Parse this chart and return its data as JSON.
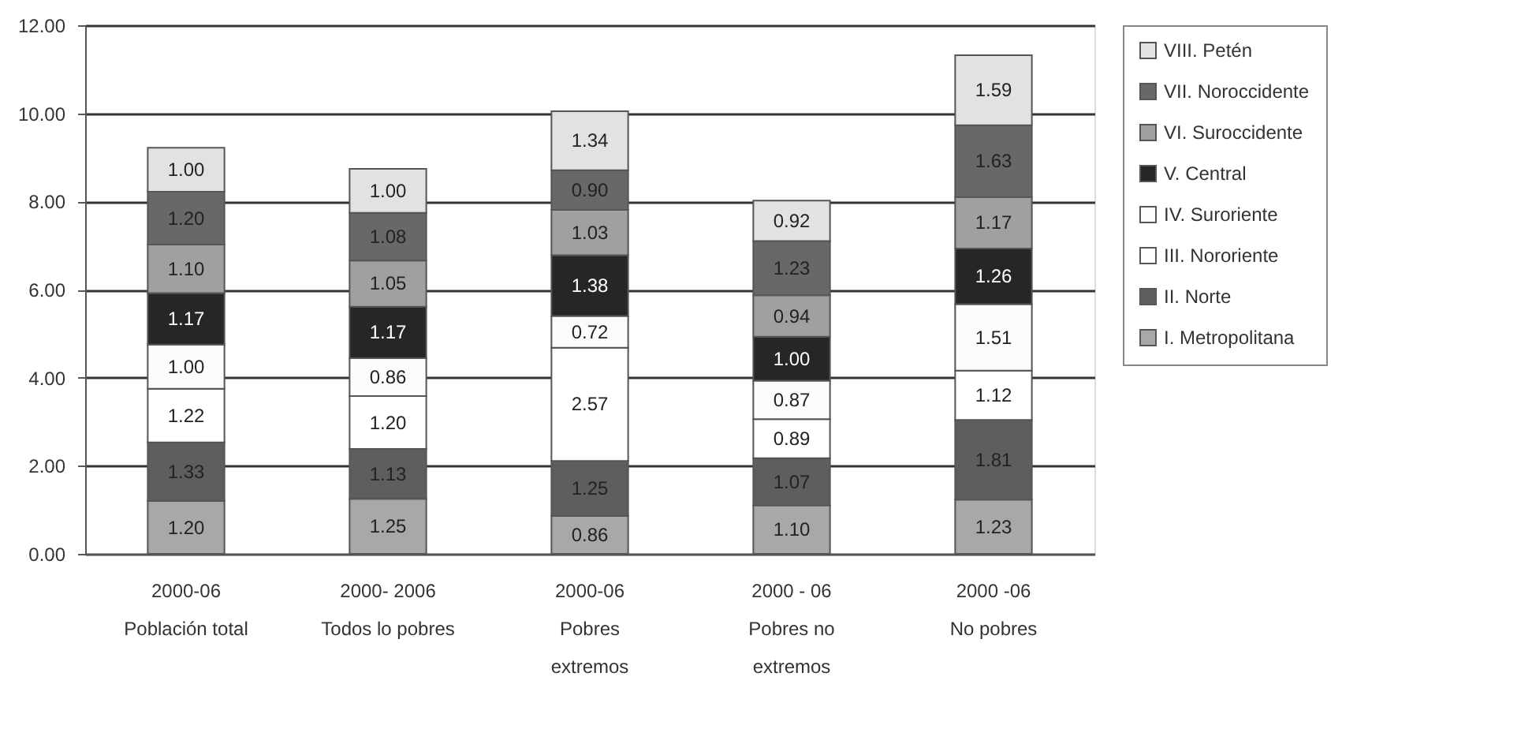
{
  "chart_data": {
    "type": "bar",
    "stacked": true,
    "grid": "y",
    "legend": "right",
    "categories": [
      "2000-06\nPoblación total",
      "2000- 2006\nTodos lo pobres",
      "2000-06\nPobres\nextremos",
      "2000 - 06\nPobres no\nextremos",
      "2000 -06\nNo pobres"
    ],
    "ylim": [
      0,
      12
    ],
    "yticks": [
      {
        "value": 0,
        "label": "0.00"
      },
      {
        "value": 2,
        "label": "2.00"
      },
      {
        "value": 4,
        "label": "4.00"
      },
      {
        "value": 6,
        "label": "6.00"
      },
      {
        "value": 8,
        "label": "8.00"
      },
      {
        "value": 10,
        "label": "10.00"
      },
      {
        "value": 12,
        "label": "12.00"
      }
    ],
    "series": [
      {
        "name": "I. Metropolitana",
        "color": "#a8a8a8",
        "values": [
          1.2,
          1.25,
          0.86,
          1.1,
          1.23
        ],
        "value_labels": [
          "1.20",
          "1.25",
          "0.86",
          "1.10",
          "1.23"
        ]
      },
      {
        "name": "II. Norte",
        "color": "#5e5e5e",
        "values": [
          1.33,
          1.13,
          1.25,
          1.07,
          1.81
        ],
        "value_labels": [
          "1.33",
          "1.13",
          "1.25",
          "1.07",
          "1.81"
        ]
      },
      {
        "name": "III. Nororiente",
        "color": "#ffffff",
        "values": [
          1.22,
          1.2,
          2.57,
          0.89,
          1.12
        ],
        "value_labels": [
          "1.22",
          "1.20",
          "2.57",
          "0.89",
          "1.12"
        ]
      },
      {
        "name": "IV. Suroriente",
        "color": "#fcfcfc",
        "values": [
          1.0,
          0.86,
          0.72,
          0.87,
          1.51
        ],
        "value_labels": [
          "1.00",
          "0.86",
          "0.72",
          "0.87",
          "1.51"
        ]
      },
      {
        "name": "V.  Central",
        "color": "#262626",
        "values": [
          1.17,
          1.17,
          1.38,
          1.0,
          1.26
        ],
        "value_labels": [
          "1.17",
          "1.17",
          "1.38",
          "1.00",
          "1.26"
        ]
      },
      {
        "name": "VI. Suroccidente",
        "color": "#a0a0a0",
        "values": [
          1.1,
          1.05,
          1.03,
          0.94,
          1.17
        ],
        "value_labels": [
          "1.10",
          "1.05",
          "1.03",
          "0.94",
          "1.17"
        ]
      },
      {
        "name": "VII. Noroccidente",
        "color": "#686868",
        "values": [
          1.2,
          1.08,
          0.9,
          1.23,
          1.63
        ],
        "value_labels": [
          "1.20",
          "1.08",
          "0.90",
          "1.23",
          "1.63"
        ]
      },
      {
        "name": "VIII. Petén",
        "color": "#e2e2e2",
        "values": [
          1.0,
          1.0,
          1.34,
          0.92,
          1.59
        ],
        "value_labels": [
          "1.00",
          "1.00",
          "1.34",
          "0.92",
          "1.59"
        ]
      }
    ]
  }
}
